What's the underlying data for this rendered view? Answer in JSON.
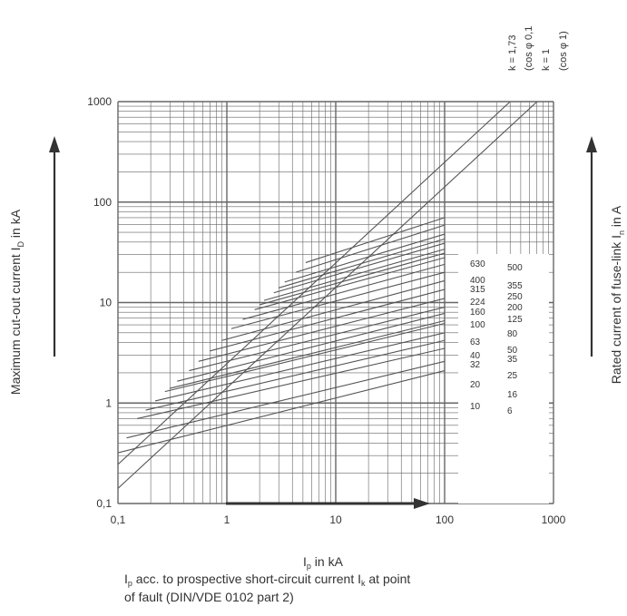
{
  "chart_data": {
    "type": "line",
    "xscale": "log",
    "yscale": "log",
    "xlim": [
      0.1,
      1000
    ],
    "ylim": [
      0.1,
      1000
    ],
    "grid": true,
    "x_ticks": [
      "0,1",
      "1",
      "10",
      "100",
      "1000"
    ],
    "y_ticks": [
      "0,1",
      "1",
      "10",
      "100",
      "1000"
    ],
    "ylabel": {
      "text": "Maximum cut-out current I",
      "sub": "D",
      "after": " in kA"
    },
    "y2label": {
      "text": "Rated current of fuse-link I",
      "sub": "n",
      "after": " in A"
    },
    "xlabel": {
      "text": "I",
      "sub": "p",
      "after": " in kA"
    },
    "caption": {
      "line1_pre": "I",
      "line1_sub1": "p",
      "line1_mid": " acc. to prospective short-circuit current I",
      "line1_sub2": "k",
      "line1_post": " at point",
      "line2": "of fault (DIN/VDE 0102 part 2)"
    },
    "k_labels": [
      "k = 1,73",
      "(cos φ 0,1",
      "k = 1",
      "(cos φ 1)"
    ],
    "k_lines": [
      {
        "name": "k = 1,73",
        "x": [
          0.1,
          400
        ],
        "y": [
          0.245,
          1000
        ]
      },
      {
        "name": "k = 1",
        "x": [
          0.1,
          707
        ],
        "y": [
          0.1414,
          1000
        ]
      }
    ],
    "fuse_labels_left": [
      "630",
      "400",
      "315",
      "224",
      "160",
      "100",
      "63",
      "40",
      "32",
      "20",
      "10"
    ],
    "fuse_labels_right": [
      "500",
      "355",
      "250",
      "200",
      "125",
      "80",
      "50",
      "35",
      "25",
      "16",
      "6"
    ],
    "fuse_series": [
      {
        "rating": "630",
        "x": [
          5.3,
          100
        ],
        "y": [
          25.0,
          70.0
        ]
      },
      {
        "rating": "500",
        "x": [
          4.3,
          100
        ],
        "y": [
          20.0,
          59.0
        ]
      },
      {
        "rating": "400",
        "x": [
          3.4,
          100
        ],
        "y": [
          16.0,
          48.0
        ]
      },
      {
        "rating": "355",
        "x": [
          3.0,
          100
        ],
        "y": [
          14.0,
          43.0
        ]
      },
      {
        "rating": "315",
        "x": [
          2.7,
          100
        ],
        "y": [
          12.5,
          39.0
        ]
      },
      {
        "rating": "250",
        "x": [
          2.2,
          100
        ],
        "y": [
          10.5,
          34.0
        ]
      },
      {
        "rating": "224",
        "x": [
          2.0,
          100
        ],
        "y": [
          9.5,
          31.0
        ]
      },
      {
        "rating": "200",
        "x": [
          1.8,
          100
        ],
        "y": [
          8.5,
          28.0
        ]
      },
      {
        "rating": "160",
        "x": [
          1.4,
          100
        ],
        "y": [
          6.8,
          24.0
        ]
      },
      {
        "rating": "125",
        "x": [
          1.1,
          100
        ],
        "y": [
          5.5,
          20.0
        ]
      },
      {
        "rating": "100",
        "x": [
          0.9,
          100
        ],
        "y": [
          4.2,
          16.5
        ]
      },
      {
        "rating": "80",
        "x": [
          0.7,
          100
        ],
        "y": [
          3.3,
          13.5
        ]
      },
      {
        "rating": "63",
        "x": [
          0.55,
          100
        ],
        "y": [
          2.6,
          11.0
        ]
      },
      {
        "rating": "50",
        "x": [
          0.45,
          100
        ],
        "y": [
          2.1,
          9.0
        ]
      },
      {
        "rating": "40",
        "x": [
          0.35,
          100
        ],
        "y": [
          1.65,
          7.8
        ]
      },
      {
        "rating": "35",
        "x": [
          0.3,
          100
        ],
        "y": [
          1.4,
          6.6
        ]
      },
      {
        "rating": "32",
        "x": [
          0.27,
          100
        ],
        "y": [
          1.3,
          6.2
        ]
      },
      {
        "rating": "25",
        "x": [
          0.22,
          100
        ],
        "y": [
          1.05,
          5.0
        ]
      },
      {
        "rating": "20",
        "x": [
          0.18,
          100
        ],
        "y": [
          0.85,
          4.2
        ]
      },
      {
        "rating": "16",
        "x": [
          0.15,
          100
        ],
        "y": [
          0.7,
          3.5
        ]
      },
      {
        "rating": "10",
        "x": [
          0.12,
          100
        ],
        "y": [
          0.45,
          2.6
        ]
      },
      {
        "rating": "6",
        "x": [
          0.1,
          100
        ],
        "y": [
          0.32,
          2.1
        ]
      }
    ]
  },
  "colors": {
    "line": "#555555",
    "grid": "#666666",
    "text": "#333333",
    "arrow": "#333333"
  }
}
